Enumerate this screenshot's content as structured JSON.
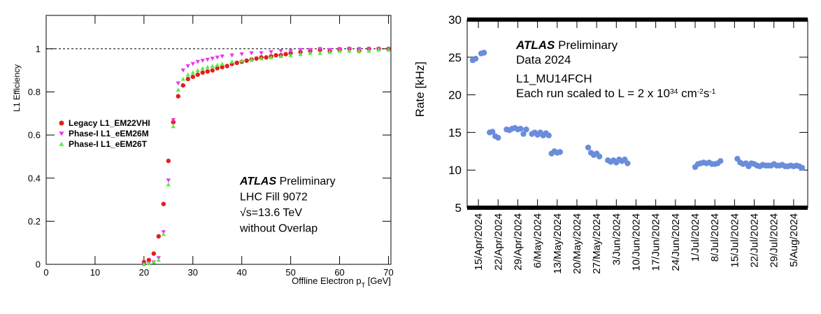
{
  "chart_data": [
    {
      "type": "scatter",
      "ylabel": "L1 Efficiency",
      "xlabel": [
        {
          "text": "Offline Electron p"
        },
        {
          "text": "T",
          "style": "sub"
        },
        {
          "text": " [GeV]"
        }
      ],
      "xlim": [
        0,
        70.5
      ],
      "ylim": [
        0,
        1.155
      ],
      "xticks": [
        0,
        10,
        20,
        30,
        40,
        50,
        60,
        70
      ],
      "yticks": [
        0,
        0.2,
        0.4,
        0.6,
        0.8,
        1
      ],
      "hline": 1,
      "legend": "center left",
      "annotations": [
        [
          {
            "text": "ATLAS",
            "style": "bold-italic"
          },
          {
            "text": " Preliminary"
          }
        ],
        [
          {
            "text": "LHC Fill 9072"
          }
        ],
        [
          {
            "text": "√s=13.6 TeV"
          }
        ],
        [
          {
            "text": "without Overlap"
          }
        ]
      ],
      "series": [
        {
          "name": "Legacy L1_EM22VHI",
          "color": "#e0201b",
          "marker": "circle",
          "x": [
            20,
            21,
            22,
            23,
            24,
            25,
            26,
            27,
            28,
            29,
            30,
            31,
            32,
            33,
            34,
            35,
            36,
            37,
            38,
            39,
            40,
            41,
            42,
            43,
            44,
            45,
            46,
            47,
            48,
            49,
            50,
            52,
            54,
            56,
            58,
            60,
            62,
            64,
            66,
            68,
            70
          ],
          "values": [
            0.01,
            0.02,
            0.05,
            0.13,
            0.28,
            0.48,
            0.66,
            0.78,
            0.83,
            0.86,
            0.87,
            0.88,
            0.89,
            0.895,
            0.9,
            0.91,
            0.915,
            0.92,
            0.93,
            0.935,
            0.94,
            0.945,
            0.95,
            0.955,
            0.96,
            0.96,
            0.965,
            0.97,
            0.97,
            0.975,
            0.98,
            0.985,
            0.99,
            0.995,
            0.99,
            0.995,
            1.0,
            0.99,
            1.0,
            1.0,
            1.0
          ]
        },
        {
          "name": "Phase-I L1_eEM26M",
          "color": "#ee33ee",
          "marker": "triangle-down",
          "x": [
            20,
            21,
            22,
            23,
            24,
            25,
            26,
            27,
            28,
            29,
            30,
            31,
            32,
            33,
            34,
            35,
            36,
            38,
            40,
            42,
            44,
            46,
            48,
            50,
            52,
            54,
            56,
            58,
            60,
            62,
            64,
            66,
            68,
            70
          ],
          "values": [
            0.0,
            0.005,
            0.01,
            0.03,
            0.15,
            0.39,
            0.67,
            0.84,
            0.9,
            0.92,
            0.93,
            0.94,
            0.945,
            0.95,
            0.955,
            0.96,
            0.965,
            0.97,
            0.975,
            0.98,
            0.98,
            0.985,
            0.99,
            0.99,
            0.995,
            0.995,
            1.0,
            0.995,
            1.0,
            1.0,
            1.0,
            1.0,
            1.0,
            1.0
          ]
        },
        {
          "name": "Phase-I L1_eEM26T",
          "color": "#55ee44",
          "marker": "triangle-up",
          "x": [
            20,
            21,
            22,
            23,
            24,
            25,
            26,
            27,
            28,
            29,
            30,
            31,
            32,
            33,
            34,
            35,
            36,
            38,
            40,
            42,
            44,
            46,
            48,
            50,
            52,
            54,
            56,
            58,
            60,
            62,
            64,
            66,
            68,
            70
          ],
          "values": [
            0.0,
            0.005,
            0.01,
            0.02,
            0.14,
            0.37,
            0.64,
            0.81,
            0.86,
            0.88,
            0.89,
            0.9,
            0.91,
            0.915,
            0.92,
            0.925,
            0.93,
            0.94,
            0.945,
            0.95,
            0.955,
            0.96,
            0.965,
            0.97,
            0.975,
            0.98,
            0.98,
            0.985,
            0.99,
            0.99,
            0.99,
            0.99,
            0.995,
            0.995
          ]
        }
      ]
    },
    {
      "type": "scatter",
      "ylabel": "Rate [kHz]",
      "xlim": [
        "2024-04-11",
        "2024-08-10"
      ],
      "ylim": [
        5,
        30
      ],
      "yticks": [
        5,
        10,
        15,
        20,
        25,
        30
      ],
      "xticks": [
        {
          "value": "2024-04-15",
          "label": "15/Apr/2024"
        },
        {
          "value": "2024-04-22",
          "label": "22/Apr/2024"
        },
        {
          "value": "2024-04-29",
          "label": "29/Apr/2024"
        },
        {
          "value": "2024-05-06",
          "label": "6/May/2024"
        },
        {
          "value": "2024-05-13",
          "label": "13/May/2024"
        },
        {
          "value": "2024-05-20",
          "label": "20/May/2024"
        },
        {
          "value": "2024-05-27",
          "label": "27/May/2024"
        },
        {
          "value": "2024-06-03",
          "label": "3/Jun/2024"
        },
        {
          "value": "2024-06-10",
          "label": "10/Jun/2024"
        },
        {
          "value": "2024-06-17",
          "label": "17/Jun/2024"
        },
        {
          "value": "2024-06-24",
          "label": "24/Jun/2024"
        },
        {
          "value": "2024-07-01",
          "label": "1/Jul/2024"
        },
        {
          "value": "2024-07-08",
          "label": "8/Jul/2024"
        },
        {
          "value": "2024-07-15",
          "label": "15/Jul/2024"
        },
        {
          "value": "2024-07-22",
          "label": "22/Jul/2024"
        },
        {
          "value": "2024-07-29",
          "label": "29/Jul/2024"
        },
        {
          "value": "2024-08-05",
          "label": "5/Aug/2024"
        }
      ],
      "annotations": [
        [
          {
            "text": "ATLAS",
            "style": "bold-italic"
          },
          {
            "text": " Preliminary"
          }
        ],
        [
          {
            "text": "Data 2024"
          }
        ],
        [
          {
            "text": "L1_MU14FCH"
          }
        ],
        [
          {
            "text": "Each run scaled to L = 2 x 10"
          },
          {
            "text": "34",
            "style": "sup"
          },
          {
            "text": " cm"
          },
          {
            "text": "-2",
            "style": "sup"
          },
          {
            "text": "s"
          },
          {
            "text": "-1",
            "style": "sup"
          }
        ]
      ],
      "series": [
        {
          "color": "#6a8ddb",
          "marker": "circle",
          "x": [
            "2024-04-13",
            "2024-04-14",
            "2024-04-16",
            "2024-04-17",
            "2024-04-19",
            "2024-04-20",
            "2024-04-21",
            "2024-04-22",
            "2024-04-25",
            "2024-04-26",
            "2024-04-27",
            "2024-04-28",
            "2024-04-29",
            "2024-04-30",
            "2024-05-01",
            "2024-05-02",
            "2024-05-04",
            "2024-05-05",
            "2024-05-06",
            "2024-05-07",
            "2024-05-08",
            "2024-05-09",
            "2024-05-10",
            "2024-05-11",
            "2024-05-12",
            "2024-05-13",
            "2024-05-14",
            "2024-05-24",
            "2024-05-25",
            "2024-05-26",
            "2024-05-27",
            "2024-05-28",
            "2024-05-31",
            "2024-06-01",
            "2024-06-02",
            "2024-06-03",
            "2024-06-04",
            "2024-06-05",
            "2024-06-06",
            "2024-06-07",
            "2024-07-01",
            "2024-07-02",
            "2024-07-03",
            "2024-07-04",
            "2024-07-05",
            "2024-07-06",
            "2024-07-07",
            "2024-07-08",
            "2024-07-09",
            "2024-07-10",
            "2024-07-16",
            "2024-07-17",
            "2024-07-18",
            "2024-07-19",
            "2024-07-20",
            "2024-07-21",
            "2024-07-22",
            "2024-07-23",
            "2024-07-24",
            "2024-07-25",
            "2024-07-26",
            "2024-07-27",
            "2024-07-28",
            "2024-07-29",
            "2024-07-30",
            "2024-07-31",
            "2024-08-01",
            "2024-08-02",
            "2024-08-03",
            "2024-08-04",
            "2024-08-05",
            "2024-08-06",
            "2024-08-07",
            "2024-08-08"
          ],
          "values": [
            24.6,
            24.8,
            25.5,
            25.6,
            15.0,
            15.1,
            14.5,
            14.3,
            15.4,
            15.3,
            15.5,
            15.6,
            15.4,
            15.5,
            14.8,
            15.4,
            14.8,
            15.0,
            14.7,
            15.0,
            14.6,
            14.9,
            14.6,
            12.2,
            12.5,
            12.3,
            12.4,
            13.0,
            12.3,
            12.0,
            12.2,
            11.8,
            11.3,
            11.1,
            11.3,
            11.0,
            11.4,
            11.2,
            11.4,
            10.9,
            10.4,
            10.8,
            10.9,
            11.0,
            10.9,
            11.0,
            10.8,
            10.8,
            10.9,
            11.2,
            11.5,
            11.0,
            10.8,
            10.9,
            10.5,
            10.9,
            10.8,
            10.6,
            10.5,
            10.7,
            10.6,
            10.6,
            10.6,
            10.8,
            10.6,
            10.6,
            10.7,
            10.5,
            10.5,
            10.6,
            10.5,
            10.6,
            10.5,
            10.3
          ]
        }
      ]
    }
  ]
}
